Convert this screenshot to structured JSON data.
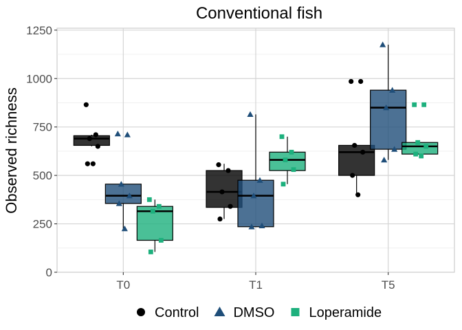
{
  "chart_data": {
    "type": "box",
    "title": "Conventional fish",
    "xlabel": "",
    "ylabel": "Observed richness",
    "categories": [
      "T0",
      "T1",
      "T5"
    ],
    "ylim": [
      0,
      1260
    ],
    "yticks": [
      0,
      250,
      500,
      750,
      1000,
      1250
    ],
    "grid": true,
    "legend_position": "bottom",
    "colors": {
      "Control": "#000000",
      "DMSO": "#1f4e79",
      "Loperamide": "#1db07d"
    },
    "series": [
      {
        "name": "Control",
        "marker": "circle",
        "boxes": [
          {
            "category": "T0",
            "whisker_low": 650,
            "q1": 655,
            "median": 690,
            "q3": 705,
            "whisker_high": 710,
            "outliers": [
              865,
              560
            ]
          },
          {
            "category": "T1",
            "whisker_low": 275,
            "q1": 335,
            "median": 415,
            "q3": 525,
            "whisker_high": 560,
            "outliers": []
          },
          {
            "category": "T5",
            "whisker_low": 400,
            "q1": 500,
            "median": 620,
            "q3": 655,
            "whisker_high": 660,
            "outliers": [
              985,
              985
            ]
          }
        ],
        "points": [
          {
            "category": "T0",
            "values": [
              865,
              710,
              690,
              650,
              560,
              560
            ]
          },
          {
            "category": "T1",
            "values": [
              555,
              525,
              415,
              340,
              275
            ]
          },
          {
            "category": "T5",
            "values": [
              985,
              985,
              655,
              620,
              500,
              400
            ]
          }
        ]
      },
      {
        "name": "DMSO",
        "marker": "triangle",
        "boxes": [
          {
            "category": "T0",
            "whisker_low": 225,
            "q1": 355,
            "median": 395,
            "q3": 455,
            "whisker_high": 455,
            "outliers": [
              715,
              710
            ]
          },
          {
            "category": "T1",
            "whisker_low": 235,
            "q1": 235,
            "median": 395,
            "q3": 475,
            "whisker_high": 815,
            "outliers": []
          },
          {
            "category": "T5",
            "whisker_low": 580,
            "q1": 635,
            "median": 850,
            "q3": 940,
            "whisker_high": 1175,
            "outliers": []
          }
        ],
        "points": [
          {
            "category": "T0",
            "values": [
              715,
              710,
              455,
              395,
              355,
              225
            ]
          },
          {
            "category": "T1",
            "values": [
              815,
              475,
              395,
              240,
              235
            ]
          },
          {
            "category": "T5",
            "values": [
              1175,
              940,
              850,
              635,
              580
            ]
          }
        ]
      },
      {
        "name": "Loperamide",
        "marker": "square",
        "boxes": [
          {
            "category": "T0",
            "whisker_low": 105,
            "q1": 165,
            "median": 315,
            "q3": 340,
            "whisker_high": 375,
            "outliers": []
          },
          {
            "category": "T1",
            "whisker_low": 455,
            "q1": 525,
            "median": 580,
            "q3": 620,
            "whisker_high": 700,
            "outliers": []
          },
          {
            "category": "T5",
            "whisker_low": 600,
            "q1": 610,
            "median": 650,
            "q3": 670,
            "whisker_high": 670,
            "outliers": [
              865,
              865
            ]
          }
        ],
        "points": [
          {
            "category": "T0",
            "values": [
              375,
              340,
              315,
              165,
              105
            ]
          },
          {
            "category": "T1",
            "values": [
              700,
              620,
              580,
              530,
              455
            ]
          },
          {
            "category": "T5",
            "values": [
              865,
              865,
              670,
              650,
              610,
              600
            ]
          }
        ]
      }
    ]
  }
}
